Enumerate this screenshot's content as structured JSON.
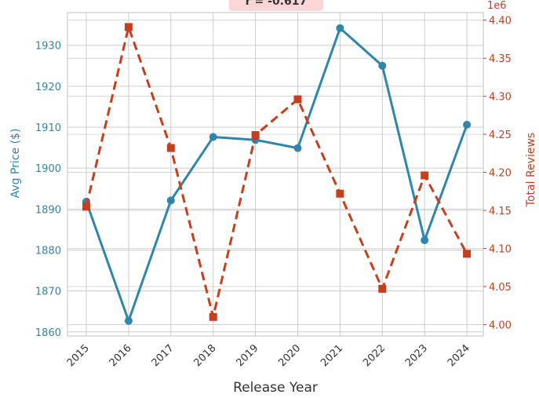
{
  "chart_data": {
    "type": "line",
    "annotation": "r = -0.617",
    "xlabel": "Release Year",
    "ylabel_left": "Avg Price ($)",
    "ylabel_right": "Total Reviews",
    "right_axis_multiplier": "1e6",
    "categories": [
      "2015",
      "2016",
      "2017",
      "2018",
      "2019",
      "2020",
      "2021",
      "2022",
      "2023",
      "2024"
    ],
    "ylim_left": [
      1859,
      1938
    ],
    "ylim_right": [
      3.985,
      4.41
    ],
    "yticks_left": [
      "1860",
      "1870",
      "1880",
      "1890",
      "1900",
      "1910",
      "1920",
      "1930"
    ],
    "yticks_right": [
      "4.00",
      "4.05",
      "4.10",
      "4.15",
      "4.20",
      "4.25",
      "4.30",
      "4.35",
      "4.40"
    ],
    "series": [
      {
        "axis": "left",
        "style": "solid",
        "marker": "circle",
        "color": "#2E86AB",
        "values": [
          1891.8,
          1862.7,
          1892.1,
          1907.6,
          1906.9,
          1904.9,
          1934.2,
          1925.0,
          1882.4,
          1910.6
        ]
      },
      {
        "axis": "right",
        "style": "dashed",
        "marker": "square",
        "color": "#C73E1D",
        "values": [
          4.155,
          4.391,
          4.232,
          4.01,
          4.249,
          4.296,
          4.172,
          4.047,
          4.196,
          4.093
        ]
      }
    ],
    "grid": true,
    "colors": {
      "left_axis": "#2E86AB",
      "right_axis": "#C73E1D",
      "annotation_bg": "#FAD6D6",
      "grid": "#CCCCCC",
      "xlabel": "#333333"
    }
  }
}
